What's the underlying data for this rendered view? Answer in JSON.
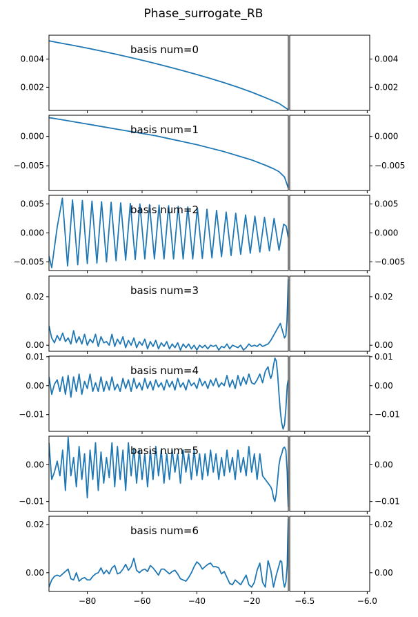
{
  "figure": {
    "title": "Phase_surrogate_RB"
  },
  "colors": {
    "line": "#1f77b4",
    "axes": "#000000",
    "background": "#ffffff"
  },
  "chart_data": {
    "type": "line",
    "title": "Phase_surrogate_RB",
    "layout": "7 rows x 2 columns, shared y per row",
    "main_x": {
      "xlim": [
        -94,
        -6.6
      ],
      "ticks": [
        -80,
        -60,
        -40,
        -20
      ],
      "tick_labels": [
        "−80",
        "−60",
        "−40",
        "−20"
      ]
    },
    "inset_x": {
      "xlim": [
        -6.62,
        -5.98
      ],
      "ticks": [
        -6.5,
        -6.0
      ],
      "tick_labels": [
        "−6.5",
        "−6.0"
      ]
    },
    "panels": [
      {
        "label": "basis num=0",
        "ylim": [
          0.00035,
          0.0057
        ],
        "yticks": [
          0.002,
          0.004
        ],
        "ytick_labels": [
          "0.002",
          "0.004"
        ],
        "x": [
          -94,
          -90,
          -85,
          -80,
          -75,
          -70,
          -65,
          -60,
          -55,
          -50,
          -45,
          -40,
          -35,
          -30,
          -25,
          -20,
          -15,
          -10,
          -6.6
        ],
        "y": [
          0.0053,
          0.00515,
          0.00497,
          0.00478,
          0.00458,
          0.00437,
          0.00415,
          0.00392,
          0.00368,
          0.00343,
          0.00317,
          0.0029,
          0.00262,
          0.00232,
          0.002,
          0.00165,
          0.00126,
          0.00085,
          0.0004
        ]
      },
      {
        "label": "basis num=1",
        "ylim": [
          -0.0092,
          0.0036
        ],
        "yticks": [
          -0.005,
          0.0
        ],
        "ytick_labels": [
          "−0.005",
          "0.000"
        ],
        "x": [
          -94,
          -90,
          -85,
          -80,
          -75,
          -70,
          -65,
          -60,
          -55,
          -50,
          -45,
          -40,
          -35,
          -30,
          -25,
          -20,
          -15,
          -12,
          -10,
          -8,
          -6.6
        ],
        "y": [
          0.0032,
          0.0029,
          0.0025,
          0.0021,
          0.0017,
          0.0013,
          0.0009,
          0.0005,
          0.0001,
          -0.0004,
          -0.0009,
          -0.0014,
          -0.002,
          -0.0026,
          -0.0033,
          -0.004,
          -0.0049,
          -0.0055,
          -0.006,
          -0.0069,
          -0.0088
        ]
      },
      {
        "label": "basis num=2",
        "ylim": [
          -0.0065,
          0.0065
        ],
        "yticks": [
          -0.005,
          0.0,
          0.005
        ],
        "ytick_labels": [
          "−0.005",
          "0.000",
          "0.005"
        ],
        "x": [
          -94,
          -93,
          -91,
          -89.1,
          -87.2,
          -85.4,
          -83.5,
          -81.8,
          -80,
          -78.3,
          -76.5,
          -74.8,
          -73,
          -71.3,
          -69.5,
          -67.8,
          -66,
          -64.3,
          -62.5,
          -60.8,
          -59,
          -57.3,
          -55.5,
          -53.8,
          -52,
          -50.3,
          -48.5,
          -46.8,
          -45,
          -43.3,
          -41.5,
          -39.8,
          -38,
          -36.3,
          -34.5,
          -32.8,
          -31,
          -29.3,
          -27.5,
          -25.8,
          -24,
          -22.2,
          -20.5,
          -18.8,
          -17,
          -15.3,
          -13.5,
          -11.8,
          -10,
          -8.3,
          -7.4,
          -6.6
        ],
        "y": [
          -0.004,
          -0.006,
          0.001,
          0.006,
          -0.0057,
          0.0057,
          -0.0055,
          0.0056,
          -0.0053,
          0.0055,
          -0.0052,
          0.0054,
          -0.005,
          0.0053,
          -0.0048,
          0.0052,
          -0.0047,
          0.0051,
          -0.0046,
          0.005,
          -0.0045,
          0.0049,
          -0.0045,
          0.0048,
          -0.0045,
          0.0047,
          -0.0045,
          0.0046,
          -0.0045,
          0.0045,
          -0.0045,
          0.0043,
          -0.0044,
          0.0041,
          -0.0043,
          0.0039,
          -0.0041,
          0.0036,
          -0.0039,
          0.0034,
          -0.0037,
          0.0031,
          -0.0035,
          0.0029,
          -0.0033,
          0.0027,
          -0.0031,
          0.0025,
          -0.003,
          0.0015,
          0.0012,
          -0.0008
        ]
      },
      {
        "label": "basis num=3",
        "ylim": [
          -0.0025,
          0.0285
        ],
        "yticks": [
          0.0,
          0.02
        ],
        "ytick_labels": [
          "0.00",
          "0.02"
        ],
        "x": [
          -94,
          -93,
          -92,
          -91,
          -90,
          -89,
          -88,
          -87,
          -86,
          -85,
          -84,
          -83,
          -82,
          -81,
          -80,
          -79,
          -78,
          -77,
          -76,
          -75,
          -74,
          -73,
          -72,
          -71,
          -70,
          -69,
          -68,
          -67,
          -66,
          -65,
          -64,
          -63,
          -62,
          -61,
          -60,
          -59,
          -58,
          -57,
          -56,
          -55,
          -54,
          -53,
          -52,
          -51,
          -50,
          -49,
          -48,
          -47,
          -46,
          -45,
          -44,
          -43,
          -42,
          -41,
          -40,
          -39,
          -38,
          -37,
          -36,
          -35,
          -34,
          -33,
          -32,
          -31,
          -30,
          -29,
          -28,
          -27,
          -26,
          -25,
          -24,
          -23,
          -22,
          -21,
          -20,
          -19,
          -18,
          -17,
          -16,
          -15,
          -14,
          -13,
          -12,
          -11,
          -10,
          -9.5,
          -9,
          -8.5,
          -8,
          -7.5,
          -7.1,
          -6.8,
          -6.6
        ],
        "y": [
          0.008,
          0.003,
          0.001,
          0.004,
          0.002,
          0.005,
          0.0015,
          0.003,
          0.0005,
          0.006,
          0.001,
          0.0035,
          0.0005,
          0.0045,
          0.0,
          0.0025,
          0.001,
          0.0045,
          -0.0005,
          0.0035,
          0.001,
          0.0015,
          0.0,
          0.0045,
          -0.0005,
          0.0025,
          0.0005,
          0.0035,
          -0.001,
          0.002,
          0.0,
          0.003,
          -0.001,
          0.0015,
          0.0,
          0.0025,
          -0.0015,
          0.0015,
          -0.0005,
          0.002,
          -0.0015,
          0.001,
          -0.0005,
          0.0015,
          -0.0015,
          0.0005,
          -0.001,
          0.001,
          -0.002,
          0.0005,
          -0.001,
          0.0005,
          -0.0015,
          0.0,
          -0.002,
          0.0,
          -0.001,
          0.0,
          -0.0015,
          0.0,
          -0.0005,
          0.0,
          -0.002,
          -0.0005,
          -0.001,
          0.0005,
          -0.0015,
          0.0,
          -0.0005,
          -0.001,
          0.0,
          -0.002,
          -0.001,
          0.0005,
          -0.0005,
          0.0,
          -0.0005,
          0.0005,
          -0.0005,
          0.0,
          0.0005,
          0.002,
          0.004,
          0.006,
          0.008,
          0.009,
          0.007,
          0.005,
          0.003,
          0.004,
          0.01,
          0.02,
          0.0272
        ]
      },
      {
        "label": "basis num=4",
        "ylim": [
          -0.0158,
          0.0102
        ],
        "yticks": [
          -0.01,
          0.0,
          0.01
        ],
        "ytick_labels": [
          "−0.01",
          "0.00",
          "0.01"
        ],
        "x": [
          -94,
          -93,
          -92,
          -91,
          -90,
          -89,
          -88,
          -87,
          -86,
          -85,
          -84,
          -83,
          -82,
          -81,
          -80,
          -79,
          -78,
          -77,
          -76,
          -75,
          -74,
          -73,
          -72,
          -71,
          -70,
          -69,
          -68,
          -67,
          -66,
          -65,
          -64,
          -63,
          -62,
          -61,
          -60,
          -59,
          -58,
          -57,
          -56,
          -55,
          -54,
          -53,
          -52,
          -51,
          -50,
          -49,
          -48,
          -47,
          -46,
          -45,
          -44,
          -43,
          -42,
          -41,
          -40,
          -39,
          -38,
          -37,
          -36,
          -35,
          -34,
          -33,
          -32,
          -31,
          -30,
          -29,
          -28,
          -27,
          -26,
          -25,
          -24,
          -23,
          -22,
          -21,
          -20,
          -19,
          -18,
          -17,
          -16,
          -15,
          -14,
          -13.5,
          -13,
          -12.5,
          -12,
          -11.5,
          -11,
          -10.5,
          -10,
          -9.5,
          -9,
          -8.5,
          -8,
          -7.5,
          -7,
          -6.6
        ],
        "y": [
          0.003,
          -0.003,
          0.0005,
          0.002,
          -0.002,
          0.003,
          -0.003,
          0.0035,
          -0.004,
          0.003,
          -0.002,
          0.004,
          -0.003,
          0.0015,
          -0.001,
          0.004,
          -0.002,
          0.001,
          -0.002,
          0.003,
          -0.002,
          0.0015,
          -0.0015,
          0.003,
          -0.0015,
          0.0005,
          -0.002,
          0.0025,
          -0.001,
          0.002,
          -0.002,
          0.0025,
          -0.001,
          0.001,
          -0.0015,
          0.0025,
          -0.001,
          0.0015,
          -0.0015,
          0.002,
          -0.0005,
          0.001,
          -0.0015,
          0.002,
          -0.0005,
          0.0015,
          -0.0015,
          0.0025,
          -0.0005,
          0.001,
          -0.0015,
          0.002,
          0.0,
          0.001,
          -0.001,
          0.0025,
          0.0,
          0.0015,
          -0.001,
          0.002,
          0.0,
          0.0025,
          -0.0005,
          0.001,
          0.0,
          0.0035,
          -0.0005,
          0.002,
          -0.001,
          0.0035,
          0.0,
          0.003,
          0.0005,
          0.004,
          0.001,
          0.0005,
          0.002,
          0.004,
          0.001,
          0.005,
          0.0065,
          0.004,
          0.0025,
          0.004,
          0.007,
          0.0095,
          0.0085,
          0.004,
          -0.003,
          -0.009,
          -0.013,
          -0.015,
          -0.0135,
          -0.008,
          0.0,
          0.002
        ]
      },
      {
        "label": "basis num=5",
        "ylim": [
          -0.0127,
          0.0078
        ],
        "yticks": [
          -0.01,
          0.0
        ],
        "ytick_labels": [
          "−0.01",
          "0.00"
        ],
        "x": [
          -94,
          -93,
          -92,
          -91,
          -90,
          -89,
          -88,
          -87,
          -86,
          -85,
          -84,
          -83,
          -82,
          -81,
          -80,
          -79,
          -78,
          -77,
          -76,
          -75,
          -74,
          -73,
          -72,
          -71,
          -70,
          -69,
          -68,
          -67,
          -66,
          -65,
          -64,
          -63,
          -62,
          -61,
          -60,
          -59,
          -58,
          -57,
          -56,
          -55,
          -54,
          -53,
          -52,
          -51,
          -50,
          -49,
          -48,
          -47,
          -46,
          -45,
          -44,
          -43,
          -42,
          -41,
          -40,
          -39,
          -38,
          -37,
          -36,
          -35,
          -34,
          -33,
          -32,
          -31,
          -30,
          -29,
          -28,
          -27,
          -26,
          -25,
          -24,
          -23,
          -22,
          -21,
          -20,
          -19,
          -18,
          -17,
          -16,
          -15,
          -14,
          -13,
          -12.5,
          -12,
          -11.5,
          -11,
          -10.5,
          -10,
          -9.5,
          -9,
          -8.5,
          -8,
          -7.5,
          -7,
          -6.8,
          -6.6
        ],
        "y": [
          0.006,
          -0.004,
          -0.002,
          0.001,
          -0.003,
          0.004,
          -0.007,
          0.0075,
          -0.003,
          0.002,
          -0.006,
          0.005,
          -0.004,
          0.003,
          -0.009,
          0.004,
          -0.004,
          0.006,
          -0.007,
          0.0035,
          -0.005,
          0.002,
          -0.0035,
          0.006,
          -0.006,
          0.005,
          -0.004,
          0.004,
          -0.007,
          0.006,
          -0.003,
          0.0045,
          -0.005,
          0.004,
          -0.004,
          0.003,
          -0.006,
          0.004,
          -0.004,
          0.005,
          -0.003,
          0.004,
          -0.005,
          0.003,
          -0.004,
          0.004,
          -0.002,
          0.003,
          -0.005,
          0.004,
          -0.002,
          0.003,
          -0.004,
          0.004,
          -0.003,
          0.003,
          -0.004,
          0.003,
          -0.003,
          0.004,
          -0.002,
          0.003,
          -0.004,
          0.002,
          -0.003,
          0.004,
          -0.002,
          0.002,
          -0.004,
          0.004,
          -0.002,
          0.002,
          -0.003,
          0.005,
          -0.002,
          0.003,
          -0.004,
          0.003,
          -0.003,
          -0.004,
          -0.005,
          -0.006,
          -0.007,
          -0.009,
          -0.01,
          -0.008,
          -0.004,
          0.0,
          0.002,
          0.003,
          0.0045,
          0.0048,
          0.004,
          -0.002,
          -0.008,
          -0.0115
        ]
      },
      {
        "label": "basis num=6",
        "ylim": [
          -0.0078,
          0.0235
        ],
        "yticks": [
          0.0,
          0.02
        ],
        "ytick_labels": [
          "0.00",
          "0.02"
        ],
        "x": [
          -94,
          -93,
          -92,
          -91,
          -90,
          -89,
          -88,
          -87,
          -86,
          -85,
          -84,
          -83,
          -82,
          -81,
          -80,
          -79,
          -78,
          -77,
          -76,
          -75,
          -74,
          -73,
          -72,
          -71,
          -70,
          -69,
          -68,
          -67,
          -66,
          -65,
          -64,
          -63,
          -62,
          -61,
          -60,
          -59,
          -58,
          -57,
          -56,
          -55,
          -54,
          -53,
          -52,
          -51,
          -50,
          -49,
          -48,
          -47,
          -46,
          -45,
          -44,
          -43,
          -42,
          -41,
          -40,
          -39,
          -38,
          -37,
          -36,
          -35,
          -34,
          -33,
          -32,
          -31,
          -30,
          -29,
          -28,
          -27,
          -26,
          -25,
          -24,
          -23,
          -22,
          -21,
          -20,
          -19,
          -18,
          -17,
          -16,
          -15,
          -14,
          -13,
          -12,
          -11,
          -10,
          -9.5,
          -9,
          -8.5,
          -8,
          -7.5,
          -7,
          -6.8,
          -6.6
        ],
        "y": [
          -0.006,
          -0.003,
          -0.0015,
          -0.001,
          -0.0015,
          -0.0005,
          0.0005,
          0.0015,
          -0.0025,
          -0.003,
          0.0,
          -0.0035,
          -0.0025,
          -0.002,
          -0.003,
          -0.003,
          -0.0015,
          -0.0005,
          0.0,
          0.002,
          -0.0005,
          0.001,
          -0.0005,
          0.002,
          0.003,
          -0.0005,
          0.0,
          0.0015,
          0.0035,
          0.001,
          0.0025,
          0.006,
          0.001,
          0.0,
          0.001,
          0.0015,
          0.0005,
          0.003,
          0.002,
          0.0005,
          -0.001,
          0.0015,
          0.0015,
          0.0005,
          -0.0005,
          0.0005,
          0.001,
          -0.0005,
          -0.0025,
          -0.003,
          -0.0035,
          -0.002,
          0.0,
          0.0025,
          0.0045,
          0.0035,
          0.0015,
          0.0025,
          0.0035,
          0.004,
          0.0025,
          0.0025,
          0.002,
          -0.0005,
          0.0005,
          -0.002,
          -0.0045,
          -0.005,
          -0.003,
          -0.004,
          -0.005,
          -0.003,
          -0.001,
          -0.005,
          -0.006,
          -0.004,
          0.001,
          0.004,
          -0.004,
          -0.006,
          0.005,
          0.001,
          -0.006,
          -0.001,
          0.003,
          0.005,
          0.0045,
          -0.003,
          -0.006,
          -0.004,
          0.003,
          0.014,
          0.0225
        ]
      }
    ]
  }
}
